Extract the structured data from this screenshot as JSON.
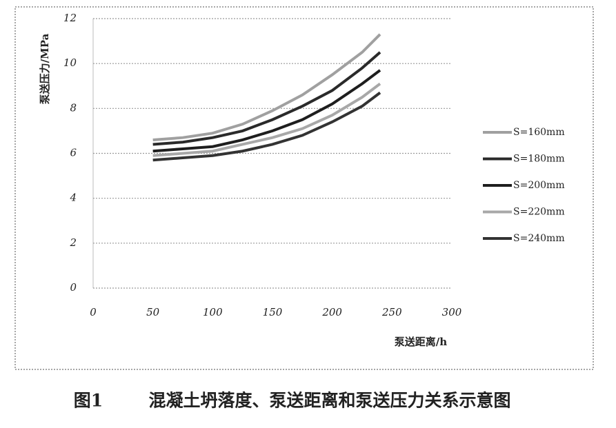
{
  "chart_data": {
    "type": "line",
    "x_label": "泵送距离/h",
    "y_label": "泵送压力/MPa",
    "caption_number": "图1",
    "caption": "混凝土坍落度、泵送距离和泵送压力关系示意图",
    "x": [
      50,
      75,
      100,
      125,
      150,
      175,
      200,
      225,
      240
    ],
    "series": [
      {
        "name": "S=160mm",
        "color": "#a0a0a0",
        "values": [
          6.6,
          6.7,
          6.9,
          7.3,
          7.9,
          8.6,
          9.5,
          10.5,
          11.3
        ]
      },
      {
        "name": "S=180mm",
        "color": "#2a2a2a",
        "values": [
          6.4,
          6.5,
          6.7,
          7.0,
          7.5,
          8.1,
          8.8,
          9.8,
          10.5
        ]
      },
      {
        "name": "S=200mm",
        "color": "#1e1e1e",
        "values": [
          6.1,
          6.2,
          6.3,
          6.6,
          7.0,
          7.5,
          8.2,
          9.1,
          9.7
        ]
      },
      {
        "name": "S=220mm",
        "color": "#a8a8a8",
        "values": [
          5.9,
          6.0,
          6.1,
          6.4,
          6.7,
          7.1,
          7.7,
          8.5,
          9.1
        ]
      },
      {
        "name": "S=240mm",
        "color": "#333333",
        "values": [
          5.7,
          5.8,
          5.9,
          6.1,
          6.4,
          6.8,
          7.4,
          8.1,
          8.7
        ]
      }
    ],
    "xlim": [
      0,
      300
    ],
    "xticks": [
      0,
      50,
      100,
      150,
      200,
      250,
      300
    ],
    "ylim": [
      0,
      12
    ],
    "yticks": [
      0,
      2,
      4,
      6,
      8,
      10,
      12
    ],
    "grid": true,
    "legend": "right"
  }
}
